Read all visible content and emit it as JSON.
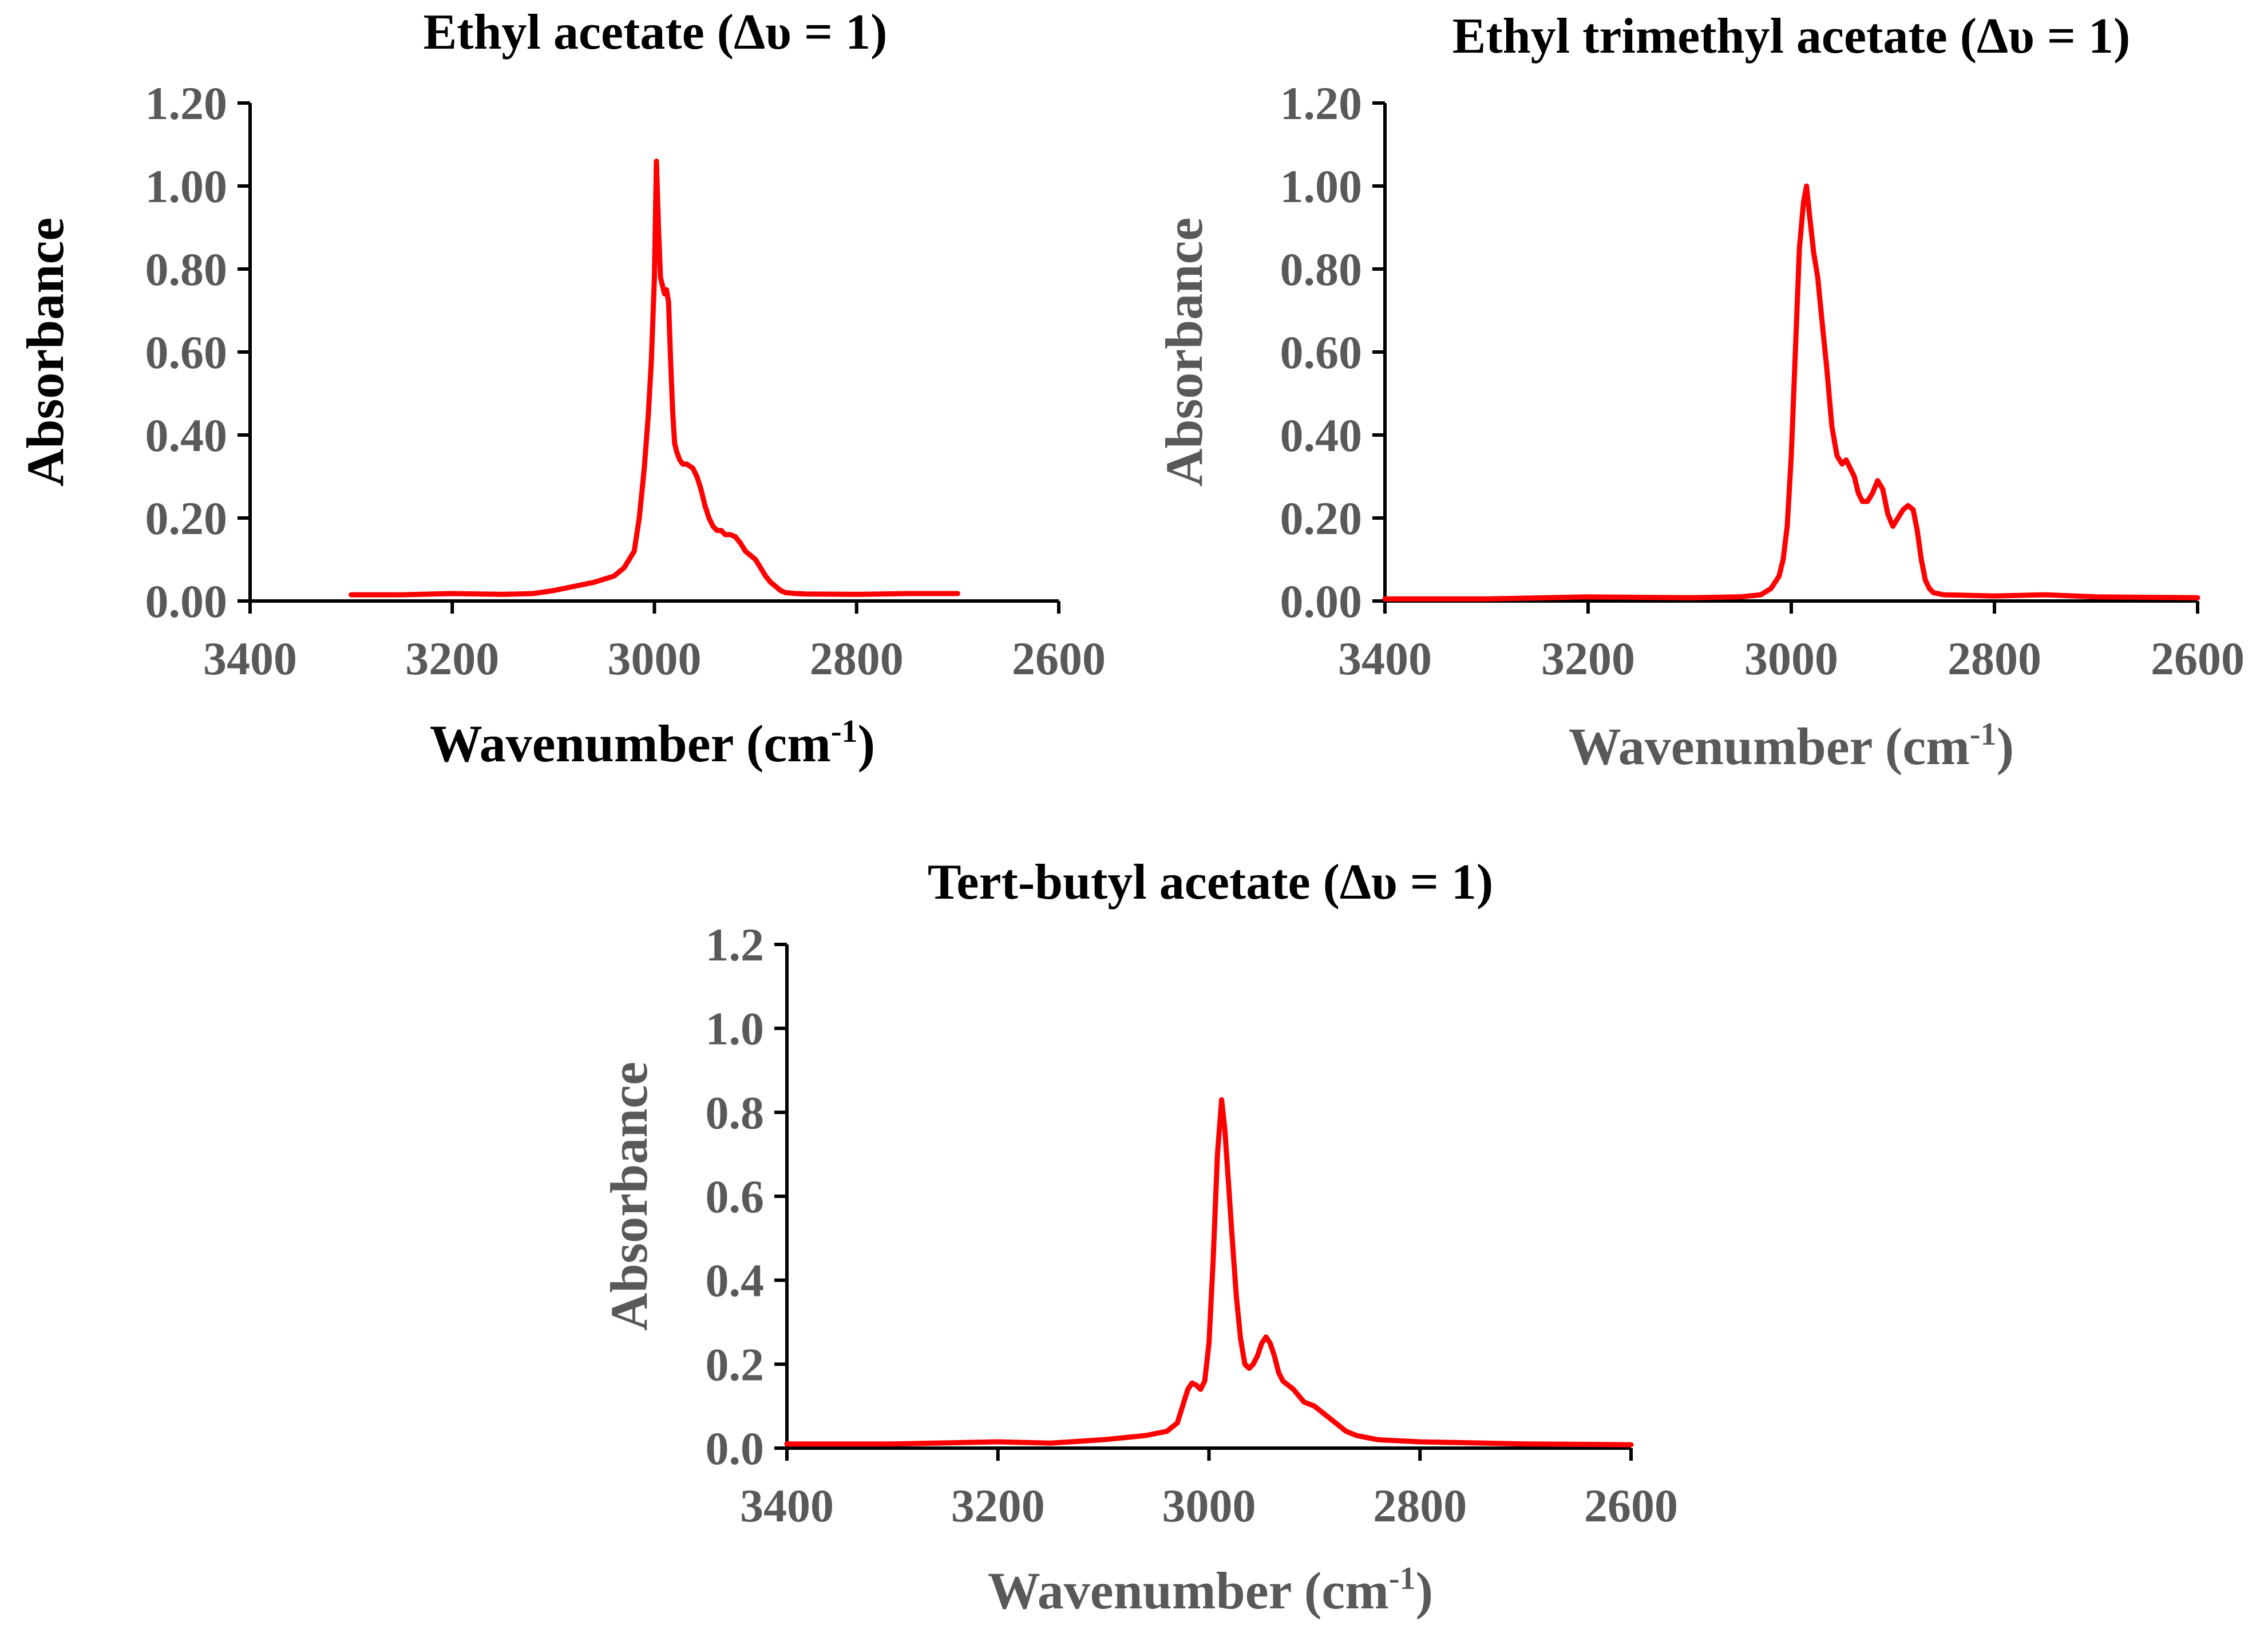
{
  "chart_data": [
    {
      "type": "line",
      "title": "Ethyl acetate (Δυ = 1)",
      "xlabel": "Wavenumber (cm",
      "xlabel_superscript": "-1",
      "xlabel_close": ")",
      "ylabel": "Absorbance",
      "label_color": "#000000",
      "xlim": [
        3400,
        2600
      ],
      "ylim": [
        0,
        1.2
      ],
      "xticks": [
        "3400",
        "3200",
        "3000",
        "2800",
        "2600"
      ],
      "yticks": [
        "0.00",
        "0.20",
        "0.40",
        "0.60",
        "0.80",
        "1.00",
        "1.20"
      ],
      "series": [
        {
          "name": "Ethyl acetate",
          "color": "#ff0000",
          "x": [
            3300,
            3250,
            3200,
            3150,
            3120,
            3100,
            3080,
            3060,
            3040,
            3030,
            3020,
            3015,
            3010,
            3006,
            3003,
            3000,
            2998,
            2996,
            2994,
            2992,
            2990,
            2988,
            2986,
            2984,
            2982,
            2980,
            2978,
            2975,
            2972,
            2968,
            2962,
            2958,
            2954,
            2950,
            2946,
            2942,
            2938,
            2934,
            2930,
            2925,
            2920,
            2915,
            2910,
            2905,
            2900,
            2895,
            2890,
            2885,
            2880,
            2875,
            2870,
            2860,
            2850,
            2800,
            2750,
            2700
          ],
          "y": [
            0.015,
            0.015,
            0.018,
            0.016,
            0.018,
            0.025,
            0.035,
            0.045,
            0.06,
            0.08,
            0.12,
            0.2,
            0.32,
            0.45,
            0.58,
            0.78,
            1.06,
            0.9,
            0.78,
            0.76,
            0.74,
            0.75,
            0.72,
            0.58,
            0.46,
            0.38,
            0.36,
            0.34,
            0.33,
            0.33,
            0.32,
            0.3,
            0.27,
            0.23,
            0.2,
            0.18,
            0.17,
            0.17,
            0.16,
            0.16,
            0.155,
            0.14,
            0.12,
            0.11,
            0.1,
            0.08,
            0.06,
            0.045,
            0.035,
            0.025,
            0.02,
            0.018,
            0.017,
            0.016,
            0.018,
            0.018
          ]
        }
      ]
    },
    {
      "type": "line",
      "title": "Ethyl trimethyl acetate (Δυ = 1)",
      "xlabel": "Wavenumber (cm",
      "xlabel_superscript": "-1",
      "xlabel_close": ")",
      "ylabel": "Absorbance",
      "label_color": "#595959",
      "xlim": [
        3400,
        2600
      ],
      "ylim": [
        0,
        1.2
      ],
      "xticks": [
        "3400",
        "3200",
        "3000",
        "2800",
        "2600"
      ],
      "yticks": [
        "0.00",
        "0.20",
        "0.40",
        "0.60",
        "0.80",
        "1.00",
        "1.20"
      ],
      "series": [
        {
          "name": "Ethyl trimethyl acetate",
          "color": "#ff0000",
          "x": [
            3400,
            3300,
            3200,
            3100,
            3050,
            3030,
            3020,
            3012,
            3008,
            3004,
            3000,
            2996,
            2992,
            2988,
            2985,
            2982,
            2978,
            2974,
            2970,
            2965,
            2960,
            2955,
            2950,
            2946,
            2942,
            2938,
            2934,
            2930,
            2925,
            2920,
            2915,
            2910,
            2905,
            2900,
            2895,
            2890,
            2885,
            2880,
            2876,
            2872,
            2868,
            2864,
            2860,
            2850,
            2800,
            2750,
            2700,
            2600
          ],
          "y": [
            0.005,
            0.005,
            0.01,
            0.008,
            0.01,
            0.015,
            0.03,
            0.06,
            0.1,
            0.18,
            0.35,
            0.6,
            0.85,
            0.96,
            1.0,
            0.93,
            0.84,
            0.78,
            0.68,
            0.56,
            0.42,
            0.35,
            0.33,
            0.34,
            0.32,
            0.3,
            0.26,
            0.24,
            0.24,
            0.26,
            0.29,
            0.27,
            0.21,
            0.18,
            0.2,
            0.22,
            0.23,
            0.22,
            0.17,
            0.1,
            0.05,
            0.03,
            0.02,
            0.015,
            0.012,
            0.015,
            0.01,
            0.008
          ]
        }
      ]
    },
    {
      "type": "line",
      "title": "Tert-butyl acetate (Δυ = 1)",
      "xlabel": "Wavenumber (cm",
      "xlabel_superscript": "-1",
      "xlabel_close": ")",
      "ylabel": "Absorbance",
      "label_color": "#595959",
      "xlim": [
        3400,
        2600
      ],
      "ylim": [
        0,
        1.2
      ],
      "xticks": [
        "3400",
        "3200",
        "3000",
        "2800",
        "2600"
      ],
      "yticks": [
        "0.0",
        "0.2",
        "0.4",
        "0.6",
        "0.8",
        "1.0",
        "1.2"
      ],
      "series": [
        {
          "name": "Tert-butyl acetate",
          "color": "#ff0000",
          "x": [
            3400,
            3300,
            3200,
            3150,
            3100,
            3060,
            3040,
            3030,
            3025,
            3020,
            3016,
            3012,
            3008,
            3004,
            3000,
            2996,
            2992,
            2988,
            2985,
            2982,
            2978,
            2974,
            2970,
            2966,
            2962,
            2958,
            2954,
            2950,
            2946,
            2942,
            2938,
            2934,
            2930,
            2925,
            2920,
            2915,
            2910,
            2900,
            2890,
            2880,
            2870,
            2860,
            2850,
            2840,
            2800,
            2700,
            2600
          ],
          "y": [
            0.01,
            0.01,
            0.015,
            0.012,
            0.02,
            0.03,
            0.04,
            0.06,
            0.1,
            0.14,
            0.155,
            0.15,
            0.14,
            0.16,
            0.25,
            0.45,
            0.7,
            0.83,
            0.76,
            0.65,
            0.5,
            0.36,
            0.26,
            0.2,
            0.19,
            0.2,
            0.22,
            0.25,
            0.265,
            0.25,
            0.22,
            0.18,
            0.16,
            0.15,
            0.14,
            0.125,
            0.11,
            0.1,
            0.08,
            0.06,
            0.04,
            0.03,
            0.025,
            0.02,
            0.015,
            0.01,
            0.008
          ]
        }
      ]
    }
  ]
}
